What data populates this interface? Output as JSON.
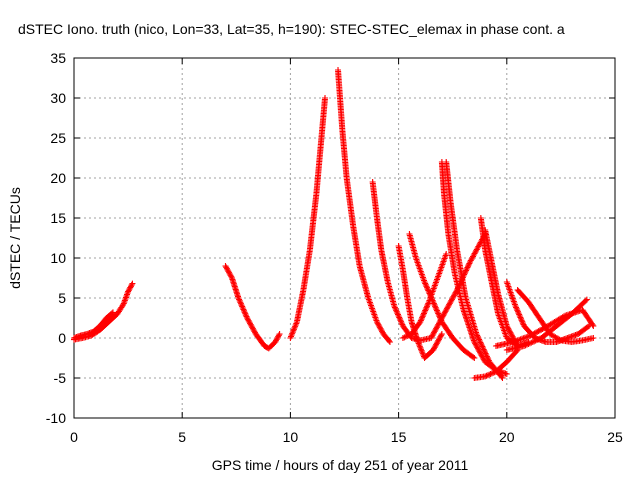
{
  "chart_data": {
    "type": "scatter",
    "title": "dSTEC Iono. truth (nico, Lon=33, Lat=35, h=190): STEC-STEC_elemax in phase cont. a",
    "xlabel": "GPS time / hours of day 251 of year 2011",
    "ylabel": "dSTEC  / TECUs",
    "xlim": [
      0,
      25
    ],
    "ylim": [
      -10,
      35
    ],
    "xticks": [
      0,
      5,
      10,
      15,
      20,
      25
    ],
    "yticks": [
      -10,
      -5,
      0,
      5,
      10,
      15,
      20,
      25,
      30,
      35
    ],
    "grid": true,
    "marker": "+",
    "color": "#ff0000",
    "series": [
      {
        "x": [
          0.0,
          0.3,
          0.6,
          0.9,
          1.2,
          1.5,
          1.8
        ],
        "y": [
          0.0,
          0.3,
          0.5,
          0.8,
          1.5,
          2.5,
          3.2
        ]
      },
      {
        "x": [
          0.0,
          0.4,
          0.8,
          1.2,
          1.6,
          2.0,
          2.3,
          2.5,
          2.7
        ],
        "y": [
          -0.2,
          0.0,
          0.3,
          1.0,
          2.0,
          3.0,
          4.3,
          5.8,
          6.8
        ]
      },
      {
        "x": [
          7.0,
          7.3,
          7.6,
          8.0,
          8.4,
          8.8,
          9.0,
          9.3,
          9.5
        ],
        "y": [
          9.0,
          7.5,
          5.0,
          2.5,
          0.5,
          -1.0,
          -1.3,
          -0.5,
          0.5
        ]
      },
      {
        "x": [
          10.0,
          10.3,
          10.6,
          10.9,
          11.2,
          11.4,
          11.6
        ],
        "y": [
          0.0,
          2.0,
          6.0,
          11.0,
          18.0,
          24.0,
          30.0
        ]
      },
      {
        "x": [
          12.2,
          12.4,
          12.6,
          12.9,
          13.2,
          13.6,
          14.0,
          14.3,
          14.6
        ],
        "y": [
          33.5,
          26.0,
          20.0,
          14.0,
          9.0,
          5.0,
          2.0,
          0.5,
          -0.5
        ]
      },
      {
        "x": [
          13.8,
          14.0,
          14.2,
          14.5,
          14.8,
          15.2,
          15.6,
          16.0,
          16.5
        ],
        "y": [
          19.5,
          15.0,
          11.0,
          7.0,
          4.0,
          1.5,
          0.0,
          -0.3,
          0.0
        ]
      },
      {
        "x": [
          15.0,
          15.2,
          15.4,
          15.6,
          15.9,
          16.2,
          16.6,
          17.0
        ],
        "y": [
          11.5,
          8.5,
          5.0,
          2.0,
          -0.5,
          -2.5,
          -1.5,
          0.5
        ]
      },
      {
        "x": [
          15.5,
          15.8,
          16.2,
          16.6,
          17.0,
          17.5,
          18.0,
          18.5
        ],
        "y": [
          13.0,
          10.0,
          7.0,
          4.5,
          2.0,
          0.0,
          -1.5,
          -2.5
        ]
      },
      {
        "x": [
          15.2,
          15.6,
          16.0,
          16.4,
          16.8,
          17.2
        ],
        "y": [
          0.0,
          0.5,
          2.0,
          4.5,
          7.5,
          10.5
        ]
      },
      {
        "x": [
          17.0,
          17.1,
          17.3,
          17.6,
          18.0,
          18.5,
          19.0,
          19.5,
          20.0
        ],
        "y": [
          22.0,
          18.0,
          13.0,
          8.0,
          3.5,
          -0.5,
          -3.0,
          -4.0,
          -4.5
        ]
      },
      {
        "x": [
          17.2,
          17.4,
          17.7,
          18.1,
          18.6,
          19.2,
          19.8
        ],
        "y": [
          22.0,
          17.0,
          11.0,
          5.0,
          0.5,
          -3.0,
          -5.0
        ]
      },
      {
        "x": [
          16.5,
          16.8,
          17.2,
          17.7,
          18.3,
          19.0
        ],
        "y": [
          0.0,
          1.5,
          3.5,
          6.0,
          9.5,
          13.0
        ]
      },
      {
        "x": [
          18.8,
          19.0,
          19.3,
          19.6,
          20.0,
          20.5,
          21.0
        ],
        "y": [
          15.0,
          11.0,
          7.0,
          3.0,
          0.0,
          -1.0,
          -0.5
        ]
      },
      {
        "x": [
          19.0,
          19.3,
          19.6,
          20.0,
          20.5
        ],
        "y": [
          13.5,
          9.5,
          5.5,
          1.5,
          -1.0
        ]
      },
      {
        "x": [
          18.5,
          19.0,
          19.5,
          20.0,
          20.5
        ],
        "y": [
          -5.0,
          -4.8,
          -4.2,
          -3.0,
          -1.5
        ]
      },
      {
        "x": [
          20.0,
          20.4,
          20.8,
          21.3,
          21.8,
          22.3,
          22.8,
          23.3,
          23.8
        ],
        "y": [
          7.0,
          4.0,
          1.5,
          0.0,
          -0.5,
          -0.5,
          0.0,
          0.5,
          1.5
        ]
      },
      {
        "x": [
          20.5,
          21.0,
          21.5,
          22.0,
          22.5,
          23.0,
          23.5,
          24.0
        ],
        "y": [
          6.0,
          4.5,
          2.5,
          0.5,
          -0.3,
          -0.5,
          -0.3,
          0.0
        ]
      },
      {
        "x": [
          20.0,
          20.8,
          21.6,
          22.3,
          23.0,
          23.7
        ],
        "y": [
          -1.5,
          -1.0,
          0.0,
          1.5,
          3.0,
          4.8
        ]
      },
      {
        "x": [
          19.5,
          20.3,
          21.1,
          21.9,
          22.7,
          23.5,
          24.0
        ],
        "y": [
          -1.0,
          -0.5,
          0.3,
          1.5,
          2.8,
          3.5,
          1.5
        ]
      }
    ]
  }
}
